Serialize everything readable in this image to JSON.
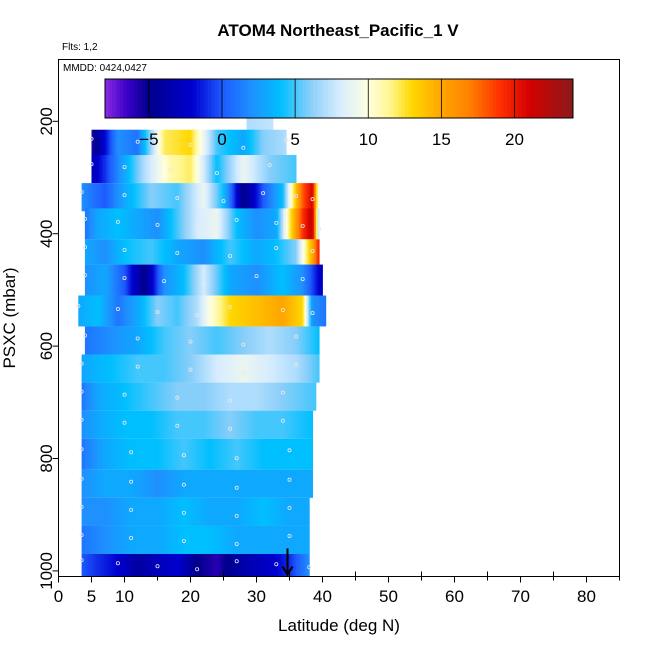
{
  "chart_data": {
    "type": "heatmap",
    "title": "ATOM4 Northeast_Pacific_1 V",
    "flights_note": "Flts: 1,2",
    "date_note": "MMDD: 0424,0427",
    "xlabel": "Latitude (deg N)",
    "ylabel": "PSXC (mbar)",
    "xlim": [
      0,
      85
    ],
    "ylim": [
      1010,
      90
    ],
    "y_reversed": true,
    "x_ticks": [
      0,
      5,
      10,
      20,
      30,
      40,
      50,
      60,
      70,
      80
    ],
    "y_ticks": [
      200,
      400,
      600,
      800,
      1000
    ],
    "colorbar": {
      "range": [
        -8,
        24
      ],
      "ticks": [
        -5,
        0,
        5,
        10,
        15,
        20
      ],
      "stops": [
        {
          "v": -8,
          "c": "#8a2be2"
        },
        {
          "v": -6.5,
          "c": "#3a00c8"
        },
        {
          "v": -5,
          "c": "#00008b"
        },
        {
          "v": -2,
          "c": "#0000d0"
        },
        {
          "v": 0,
          "c": "#1e5aff"
        },
        {
          "v": 2,
          "c": "#1e90ff"
        },
        {
          "v": 4,
          "c": "#00bfff"
        },
        {
          "v": 6,
          "c": "#87cefa"
        },
        {
          "v": 8,
          "c": "#d6ecff"
        },
        {
          "v": 10,
          "c": "#ffffe0"
        },
        {
          "v": 11.5,
          "c": "#fff68f"
        },
        {
          "v": 13,
          "c": "#ffd700"
        },
        {
          "v": 15,
          "c": "#ffa500"
        },
        {
          "v": 17,
          "c": "#ff7f00"
        },
        {
          "v": 19,
          "c": "#ff3000"
        },
        {
          "v": 21,
          "c": "#d40000"
        },
        {
          "v": 24,
          "c": "#8b1a1a"
        }
      ]
    },
    "layers": [
      {
        "p_top": 170,
        "p_bot": 220,
        "lat_min": 28.5,
        "lat_max": 32.5,
        "lat": [
          28.5,
          32.5
        ],
        "v": [
          7,
          7.5
        ]
      },
      {
        "p_top": 215,
        "p_bot": 265,
        "lat_min": 5,
        "lat_max": 34.5,
        "lat": [
          5,
          9,
          12,
          16,
          20,
          24,
          28,
          31,
          34.5
        ],
        "v": [
          -6,
          2,
          1,
          12,
          13,
          5,
          3,
          6,
          7
        ]
      },
      {
        "p_top": 260,
        "p_bot": 310,
        "lat_min": 5,
        "lat_max": 36,
        "lat": [
          5,
          7,
          10,
          13,
          17,
          20,
          24,
          28,
          32,
          36
        ],
        "v": [
          -3,
          -1,
          3,
          7,
          11,
          12,
          4,
          9,
          6,
          5
        ]
      },
      {
        "p_top": 310,
        "p_bot": 360,
        "lat_min": 3.5,
        "lat_max": 39.5,
        "lat": [
          3.5,
          7,
          10,
          14,
          18,
          22,
          25,
          28,
          31,
          34,
          36,
          37,
          38.5,
          39.5
        ],
        "v": [
          2,
          0,
          3,
          6,
          5,
          9,
          4,
          -5,
          0,
          4,
          14,
          18,
          21,
          8
        ]
      },
      {
        "p_top": 355,
        "p_bot": 410,
        "lat_min": 4,
        "lat_max": 39.5,
        "lat": [
          4,
          6,
          9,
          12,
          15,
          18,
          21,
          24,
          27,
          30,
          33,
          35,
          37,
          38.5,
          39.5
        ],
        "v": [
          1,
          3,
          4,
          3,
          2,
          5,
          8,
          9,
          4,
          2,
          3,
          12,
          19,
          22,
          6
        ]
      },
      {
        "p_top": 410,
        "p_bot": 455,
        "lat_min": 4,
        "lat_max": 39.5,
        "lat": [
          4,
          7,
          10,
          14,
          18,
          22,
          26,
          30,
          33,
          36,
          38.5,
          39.5
        ],
        "v": [
          3,
          2,
          4,
          5,
          3,
          2,
          5,
          3,
          4,
          6,
          15,
          20
        ]
      },
      {
        "p_top": 455,
        "p_bot": 510,
        "lat_min": 4,
        "lat_max": 40,
        "lat": [
          4,
          7,
          10,
          13,
          16,
          19,
          22,
          26,
          30,
          34,
          37,
          40
        ],
        "v": [
          2,
          3,
          0,
          -5,
          2,
          4,
          8,
          3,
          2,
          4,
          2,
          -3
        ]
      },
      {
        "p_top": 510,
        "p_bot": 565,
        "lat_min": 3,
        "lat_max": 40.5,
        "lat": [
          3,
          6,
          9,
          12,
          15,
          18,
          21,
          23,
          26,
          30,
          34,
          37,
          38.5,
          40.5
        ],
        "v": [
          3,
          4,
          1,
          3,
          6,
          5,
          7,
          10,
          13,
          14,
          15,
          13,
          2,
          1
        ]
      },
      {
        "p_top": 565,
        "p_bot": 615,
        "lat_min": 4,
        "lat_max": 39.5,
        "lat": [
          4,
          8,
          12,
          16,
          20,
          24,
          28,
          32,
          36,
          39.5
        ],
        "v": [
          1,
          2,
          3,
          5,
          6,
          5,
          6,
          7,
          6,
          4
        ]
      },
      {
        "p_top": 615,
        "p_bot": 665,
        "lat_min": 3.5,
        "lat_max": 39.5,
        "lat": [
          3.5,
          8,
          12,
          16,
          20,
          24,
          28,
          32,
          36,
          39.5
        ],
        "v": [
          3,
          4,
          5,
          5,
          6,
          8,
          9,
          8,
          7,
          5
        ]
      },
      {
        "p_top": 665,
        "p_bot": 715,
        "lat_min": 3.5,
        "lat_max": 39,
        "lat": [
          3.5,
          6,
          10,
          14,
          18,
          22,
          26,
          30,
          34,
          39
        ],
        "v": [
          1,
          3,
          4,
          5,
          6,
          6,
          7,
          7,
          6,
          5
        ]
      },
      {
        "p_top": 715,
        "p_bot": 765,
        "lat_min": 3.5,
        "lat_max": 38.5,
        "lat": [
          3.5,
          6,
          10,
          14,
          18,
          22,
          26,
          30,
          34,
          38.5
        ],
        "v": [
          2,
          3,
          4,
          4,
          5,
          5,
          6,
          5,
          5,
          4
        ]
      },
      {
        "p_top": 765,
        "p_bot": 820,
        "lat_min": 3.5,
        "lat_max": 38.5,
        "lat": [
          3.5,
          7,
          11,
          15,
          19,
          23,
          27,
          31,
          35,
          38.5
        ],
        "v": [
          1,
          3,
          4,
          4,
          5,
          4,
          5,
          4,
          4,
          4
        ]
      },
      {
        "p_top": 820,
        "p_bot": 870,
        "lat_min": 3.5,
        "lat_max": 38.5,
        "lat": [
          3.5,
          7,
          11,
          15,
          19,
          23,
          27,
          31,
          35,
          38.5
        ],
        "v": [
          2,
          3,
          3,
          2,
          3,
          3,
          3,
          3,
          3,
          3
        ]
      },
      {
        "p_top": 870,
        "p_bot": 920,
        "lat_min": 3.5,
        "lat_max": 38,
        "lat": [
          3.5,
          7,
          11,
          15,
          19,
          23,
          27,
          31,
          35,
          38
        ],
        "v": [
          2,
          2,
          3,
          3,
          4,
          3,
          3,
          4,
          3,
          3
        ]
      },
      {
        "p_top": 920,
        "p_bot": 970,
        "lat_min": 3.5,
        "lat_max": 38,
        "lat": [
          3.5,
          7,
          11,
          15,
          19,
          23,
          27,
          31,
          35,
          38
        ],
        "v": [
          1,
          2,
          3,
          3,
          4,
          4,
          3,
          3,
          3,
          3
        ]
      },
      {
        "p_top": 970,
        "p_bot": 1010,
        "lat_min": 3.5,
        "lat_max": 38,
        "lat": [
          3.5,
          6,
          9,
          12,
          15,
          18,
          21,
          24,
          27,
          30,
          33,
          35,
          38
        ],
        "v": [
          0,
          -1,
          -2,
          -4,
          -3,
          -2,
          -5,
          -6,
          -4,
          -3,
          -2,
          -1,
          2
        ]
      }
    ],
    "arrow": {
      "lat": 34.7,
      "p_from": 960,
      "p_to": 1010
    }
  }
}
